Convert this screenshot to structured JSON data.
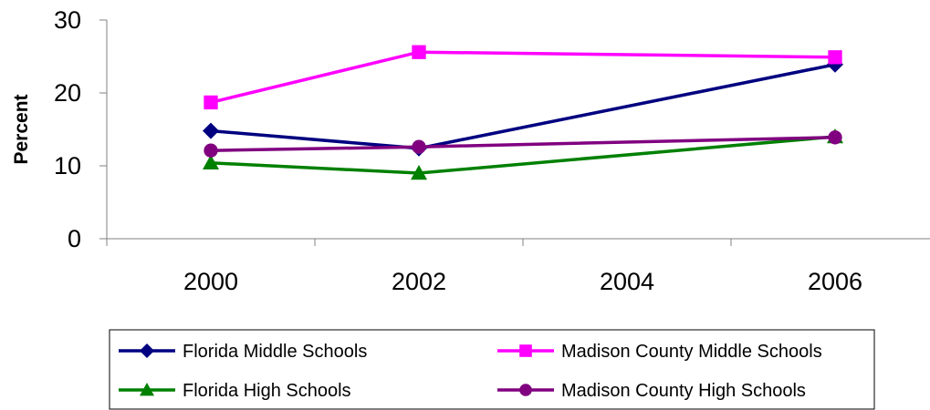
{
  "chart_data": {
    "type": "line",
    "title": "",
    "xlabel": "",
    "ylabel": "Percent",
    "categories": [
      "2000",
      "2002",
      "2004",
      "2006"
    ],
    "ylim": [
      0,
      30
    ],
    "yticks": [
      0,
      10,
      20,
      30
    ],
    "grid": false,
    "legend_position": "bottom",
    "series": [
      {
        "name": "Florida Middle Schools",
        "color": "#000080",
        "marker": "diamond",
        "values": [
          14.8,
          12.4,
          null,
          23.9
        ]
      },
      {
        "name": "Madison County Middle Schools",
        "color": "#FF00FF",
        "marker": "square",
        "values": [
          18.7,
          25.6,
          null,
          24.9
        ]
      },
      {
        "name": "Florida High Schools",
        "color": "#008000",
        "marker": "triangle",
        "values": [
          10.4,
          9.0,
          null,
          14.0
        ]
      },
      {
        "name": "Madison County High Schools",
        "color": "#800080",
        "marker": "circle",
        "values": [
          12.1,
          12.6,
          null,
          13.9
        ]
      }
    ]
  }
}
